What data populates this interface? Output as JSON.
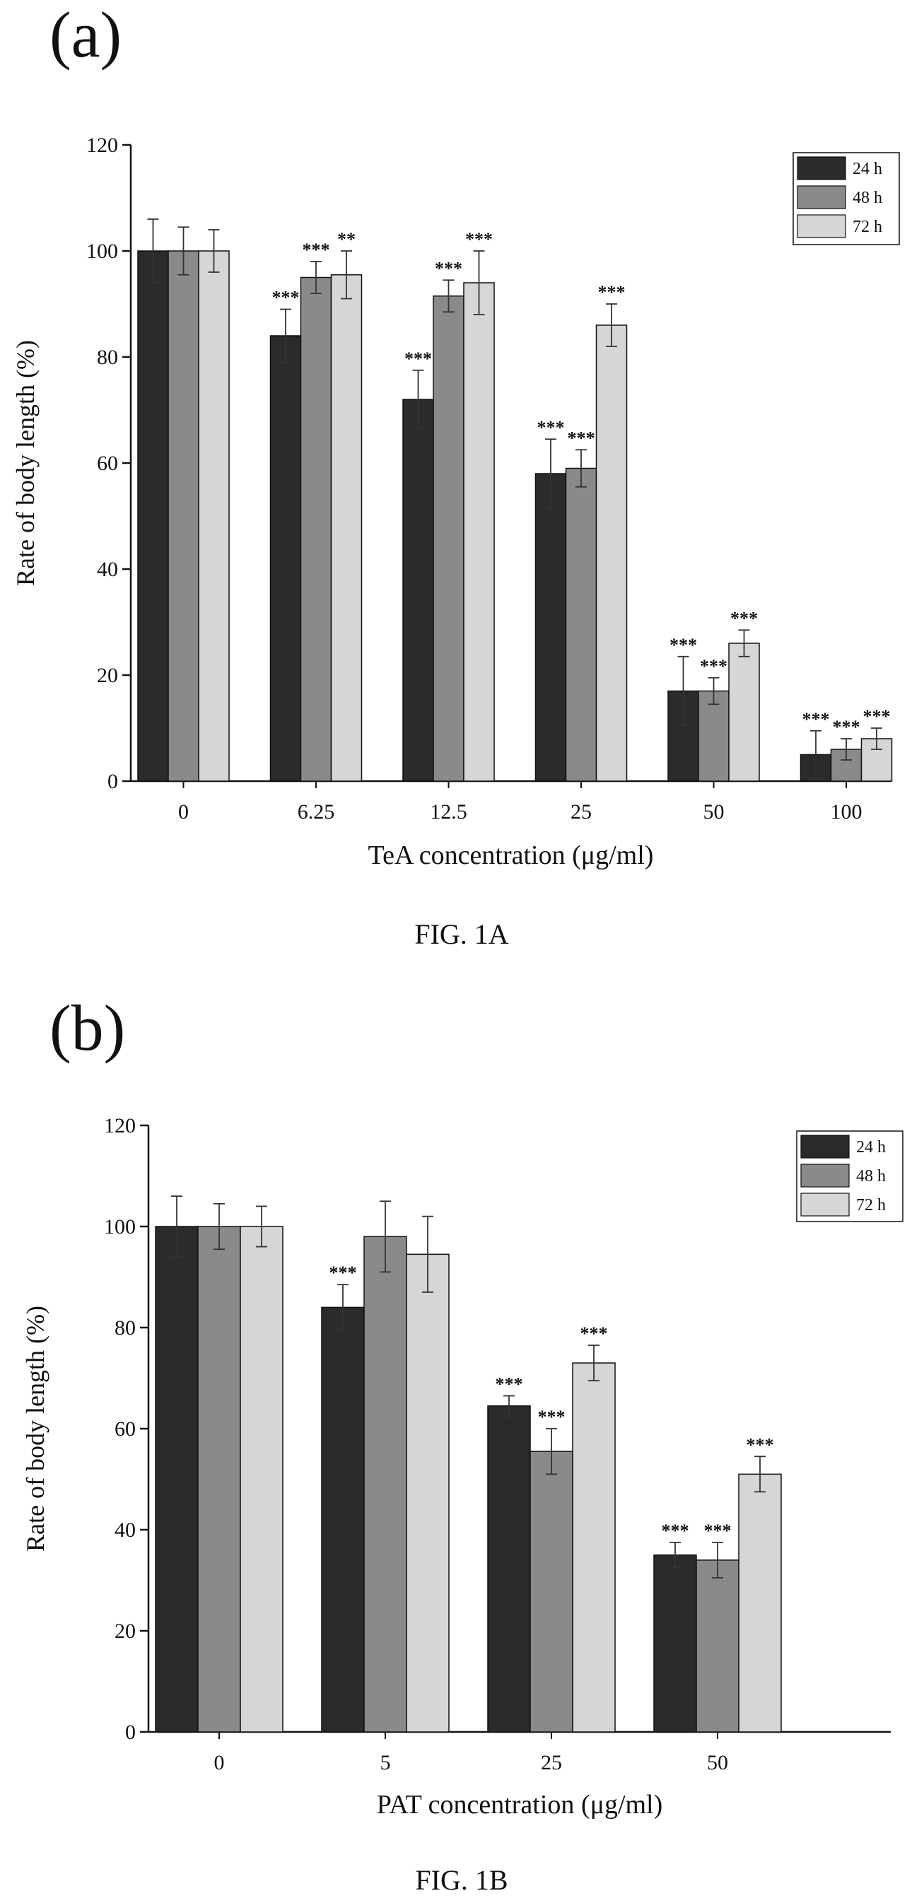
{
  "chart_data": [
    {
      "type": "bar",
      "panel_label": "(a)",
      "caption": "FIG. 1A",
      "categories": [
        "0",
        "6.25",
        "12.5",
        "25",
        "50",
        "100"
      ],
      "xlabel": "TeA concentration (μg/ml)",
      "ylabel": "Rate of body length (%)",
      "ylim": [
        0,
        120
      ],
      "yticks": [
        "0",
        "20",
        "40",
        "60",
        "80",
        "100",
        "120"
      ],
      "legend_position": "top-right",
      "series": [
        {
          "name": "24 h",
          "color": "#2b2b2b",
          "values": [
            100,
            84,
            72,
            58,
            17,
            5
          ],
          "errors": [
            6,
            5,
            5.5,
            6.5,
            6.5,
            4.5
          ],
          "sig": [
            "",
            "***",
            "***",
            "***",
            "***",
            "***"
          ]
        },
        {
          "name": "48 h",
          "color": "#8a8a8a",
          "values": [
            100,
            95,
            91.5,
            59,
            17,
            6
          ],
          "errors": [
            4.5,
            3,
            3,
            3.5,
            2.5,
            2
          ],
          "sig": [
            "",
            "***",
            "***",
            "***",
            "***",
            "***"
          ]
        },
        {
          "name": "72 h",
          "color": "#d6d6d6",
          "values": [
            100,
            95.5,
            94,
            86,
            26,
            8
          ],
          "errors": [
            4,
            4.5,
            6,
            4,
            2.5,
            2
          ],
          "sig": [
            "",
            "**",
            "***",
            "***",
            "***",
            "***"
          ]
        }
      ]
    },
    {
      "type": "bar",
      "panel_label": "(b)",
      "caption": "FIG. 1B",
      "categories": [
        "0",
        "5",
        "25",
        "50"
      ],
      "xlabel": "PAT concentration (μg/ml)",
      "ylabel": "Rate of body length (%)",
      "ylim": [
        0,
        120
      ],
      "yticks": [
        "0",
        "20",
        "40",
        "60",
        "80",
        "100",
        "120"
      ],
      "legend_position": "top-right",
      "series": [
        {
          "name": "24 h",
          "color": "#2b2b2b",
          "values": [
            100,
            84,
            64.5,
            35
          ],
          "errors": [
            6,
            4.5,
            2,
            2.5
          ],
          "sig": [
            "",
            "***",
            "***",
            "***"
          ]
        },
        {
          "name": "48 h",
          "color": "#8a8a8a",
          "values": [
            100,
            98,
            55.5,
            34
          ],
          "errors": [
            4.5,
            7,
            4.5,
            3.5
          ],
          "sig": [
            "",
            "",
            "***",
            "***"
          ]
        },
        {
          "name": "72 h",
          "color": "#d6d6d6",
          "values": [
            100,
            94.5,
            73,
            51
          ],
          "errors": [
            4,
            7.5,
            3.5,
            3.5
          ],
          "sig": [
            "",
            "",
            "***",
            "***"
          ]
        }
      ]
    }
  ]
}
